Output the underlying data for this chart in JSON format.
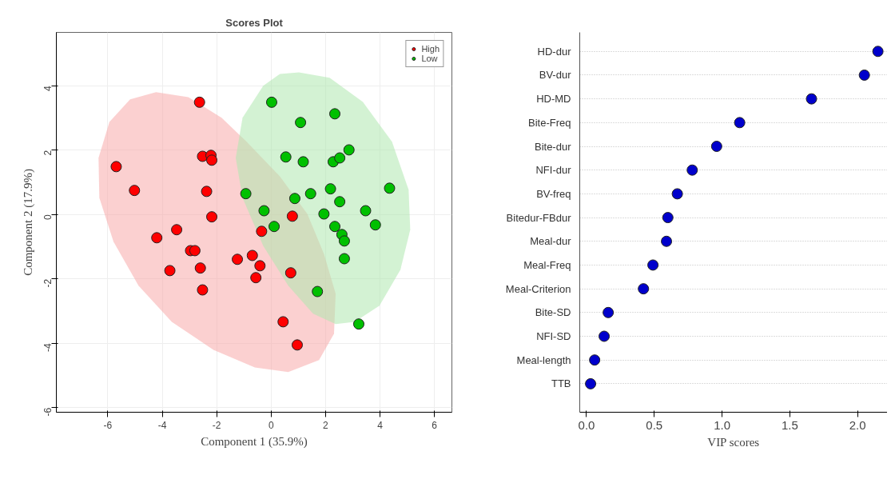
{
  "chart_data": [
    {
      "type": "scatter",
      "title": "Scores Plot",
      "xlabel": "Component 1 (35.9%)",
      "ylabel": "Component 2 (17.9%)",
      "xlim": [
        -7.89,
        6.64
      ],
      "ylim": [
        -6.14,
        5.66
      ],
      "xticks": [
        -6,
        -4,
        -2,
        0,
        2,
        4,
        6
      ],
      "yticks": [
        -6,
        -4,
        -2,
        0,
        2,
        4
      ],
      "grid": true,
      "legend": "top right",
      "series": [
        {
          "type": "area",
          "color": "#f7aaaa",
          "x": [
            -4.23,
            -3.04,
            -1.82,
            -0.9,
            0.32,
            1.33,
            1.94,
            2.37,
            2.31,
            1.76,
            0.63,
            -0.6,
            -2.12,
            -3.65,
            -4.87,
            -5.79,
            -6.31,
            -6.34,
            -5.94,
            -5.18
          ],
          "values": [
            3.8,
            3.65,
            3.01,
            2.26,
            1.19,
            0.02,
            -1.22,
            -2.46,
            -3.7,
            -4.52,
            -4.89,
            -4.75,
            -4.2,
            -3.33,
            -2.21,
            -0.84,
            0.52,
            1.76,
            2.88,
            3.58
          ]
        },
        {
          "type": "area",
          "color": "#aee8ae",
          "x": [
            1.02,
            2.15,
            3.37,
            4.44,
            5.05,
            5.11,
            4.75,
            3.98,
            3.07,
            2.37,
            1.54,
            0.63,
            -0.29,
            -1.05,
            -1.3,
            -1.05,
            -0.29,
            0.32
          ],
          "values": [
            4.42,
            4.25,
            3.5,
            2.26,
            0.77,
            -0.47,
            -1.71,
            -2.83,
            -3.33,
            -3.4,
            -3.08,
            -2.21,
            -0.97,
            0.52,
            1.76,
            3.01,
            4.0,
            4.37
          ]
        },
        {
          "name": "High",
          "marker": "circle",
          "color": "#ff0000",
          "x": [
            -2.63,
            -5.69,
            -5.02,
            -2.52,
            -2.21,
            -2.18,
            -2.37,
            -2.18,
            -3.47,
            -4.2,
            -2.96,
            -2.8,
            -3.72,
            -2.6,
            -2.52,
            -1.24,
            -0.69,
            -0.41,
            -0.56,
            -0.35,
            0.78,
            0.72,
            0.44,
            0.96
          ],
          "values": [
            3.49,
            1.49,
            0.75,
            1.81,
            1.84,
            1.69,
            0.72,
            -0.07,
            -0.47,
            -0.72,
            -1.12,
            -1.12,
            -1.74,
            -1.66,
            -2.34,
            -1.39,
            -1.27,
            -1.59,
            -1.96,
            -0.52,
            -0.05,
            -1.81,
            -3.33,
            -4.05
          ]
        },
        {
          "name": "Low",
          "marker": "circle",
          "color": "#00c000",
          "x": [
            0.02,
            1.08,
            2.34,
            0.54,
            1.18,
            2.28,
            2.52,
            2.86,
            4.35,
            -0.93,
            0.87,
            1.45,
            2.18,
            2.52,
            -0.26,
            0.11,
            1.94,
            3.47,
            3.83,
            2.34,
            2.6,
            2.69,
            2.69,
            1.7,
            3.22
          ],
          "values": [
            3.49,
            2.86,
            3.13,
            1.79,
            1.64,
            1.64,
            1.76,
            2.01,
            0.82,
            0.65,
            0.5,
            0.65,
            0.8,
            0.4,
            0.12,
            -0.37,
            0.02,
            0.12,
            -0.32,
            -0.37,
            -0.62,
            -0.82,
            -1.37,
            -2.39,
            -3.4
          ]
        }
      ]
    },
    {
      "type": "scatter",
      "orientation": "horizontal",
      "xlabel": "VIP scores",
      "marker": "circle",
      "grid": "y",
      "categories": [
        "HD-dur",
        "BV-dur",
        "HD-MD",
        "Bite-Freq",
        "Bite-dur",
        "NFI-dur",
        "BV-freq",
        "Bitedur-FBdur",
        "Meal-dur",
        "Meal-Freq",
        "Meal-Criterion",
        "Bite-SD",
        "NFI-SD",
        "Meal-length",
        "TTB"
      ],
      "values": [
        2.15,
        2.05,
        1.66,
        1.13,
        0.96,
        0.78,
        0.67,
        0.6,
        0.59,
        0.49,
        0.42,
        0.16,
        0.13,
        0.06,
        0.03
      ],
      "color": "#0000cc",
      "xlim": [
        -0.05,
        2.22
      ],
      "xticks": [
        {
          "value": 0,
          "label": "0.0"
        },
        0.5,
        {
          "value": 1,
          "label": "1.0"
        },
        1.5,
        {
          "value": 2,
          "label": "2.0"
        }
      ]
    }
  ]
}
